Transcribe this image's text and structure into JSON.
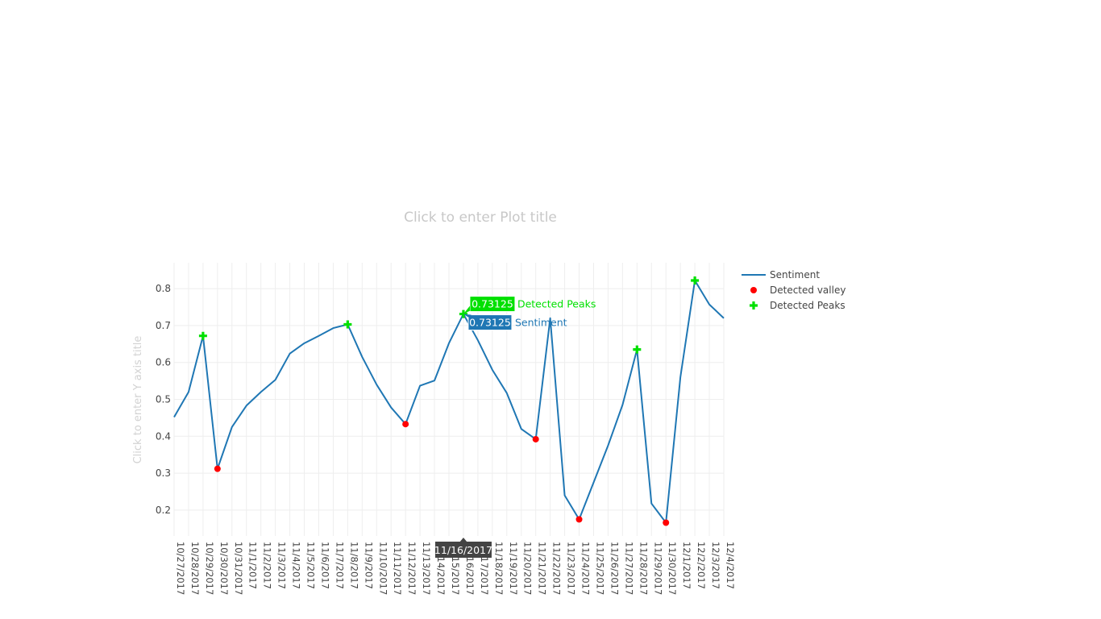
{
  "chart_data": {
    "type": "line",
    "title_placeholder": "Click to enter Plot title",
    "ylabel_placeholder": "Click to enter Y axis title",
    "x": [
      "10/27/2017",
      "10/28/2017",
      "10/29/2017",
      "10/30/2017",
      "10/31/2017",
      "11/1/2017",
      "11/2/2017",
      "11/3/2017",
      "11/4/2017",
      "11/5/2017",
      "11/6/2017",
      "11/7/2017",
      "11/8/2017",
      "11/9/2017",
      "11/10/2017",
      "11/11/2017",
      "11/12/2017",
      "11/13/2017",
      "11/14/2017",
      "11/15/2017",
      "11/16/2017",
      "11/17/2017",
      "11/18/2017",
      "11/19/2017",
      "11/20/2017",
      "11/21/2017",
      "11/22/2017",
      "11/23/2017",
      "11/24/2017",
      "11/25/2017",
      "11/26/2017",
      "11/27/2017",
      "11/28/2017",
      "11/29/2017",
      "11/30/2017",
      "12/1/2017",
      "12/2/2017",
      "12/3/2017",
      "12/4/2017"
    ],
    "series": [
      {
        "name": "Sentiment",
        "color": "#1f77b4",
        "mode": "lines",
        "values": [
          0.452,
          0.52,
          0.672,
          0.312,
          0.425,
          0.483,
          0.52,
          0.553,
          0.624,
          0.652,
          0.672,
          0.693,
          0.703,
          0.615,
          0.54,
          0.478,
          0.433,
          0.537,
          0.551,
          0.652,
          0.73125,
          0.66,
          0.58,
          0.517,
          0.42,
          0.392,
          0.72,
          0.24,
          0.175,
          0.275,
          0.375,
          0.485,
          0.635,
          0.218,
          0.166,
          0.56,
          0.822,
          0.757,
          0.72
        ]
      },
      {
        "name": "Detected valley",
        "color": "#ff0000",
        "mode": "markers",
        "marker": "circle",
        "points": [
          {
            "x": "10/30/2017",
            "y": 0.312
          },
          {
            "x": "11/12/2017",
            "y": 0.433
          },
          {
            "x": "11/21/2017",
            "y": 0.392
          },
          {
            "x": "11/24/2017",
            "y": 0.175
          },
          {
            "x": "11/30/2017",
            "y": 0.166
          }
        ]
      },
      {
        "name": "Detected Peaks",
        "color": "#00e000",
        "mode": "markers",
        "marker": "cross",
        "points": [
          {
            "x": "10/29/2017",
            "y": 0.672
          },
          {
            "x": "11/8/2017",
            "y": 0.703
          },
          {
            "x": "11/16/2017",
            "y": 0.73125
          },
          {
            "x": "11/28/2017",
            "y": 0.635
          },
          {
            "x": "12/2/2017",
            "y": 0.822
          }
        ]
      }
    ],
    "yticks": [
      0.2,
      0.3,
      0.4,
      0.5,
      0.6,
      0.7,
      0.8
    ],
    "ylim": [
      0.13,
      0.87
    ],
    "grid": true,
    "legend_position": "top-right",
    "hover": {
      "x_label": "11/16/2017",
      "peaks_value": "0.73125",
      "peaks_name": "Detected Peaks",
      "sentiment_value": "0.73125",
      "sentiment_name": "Sentiment"
    }
  }
}
